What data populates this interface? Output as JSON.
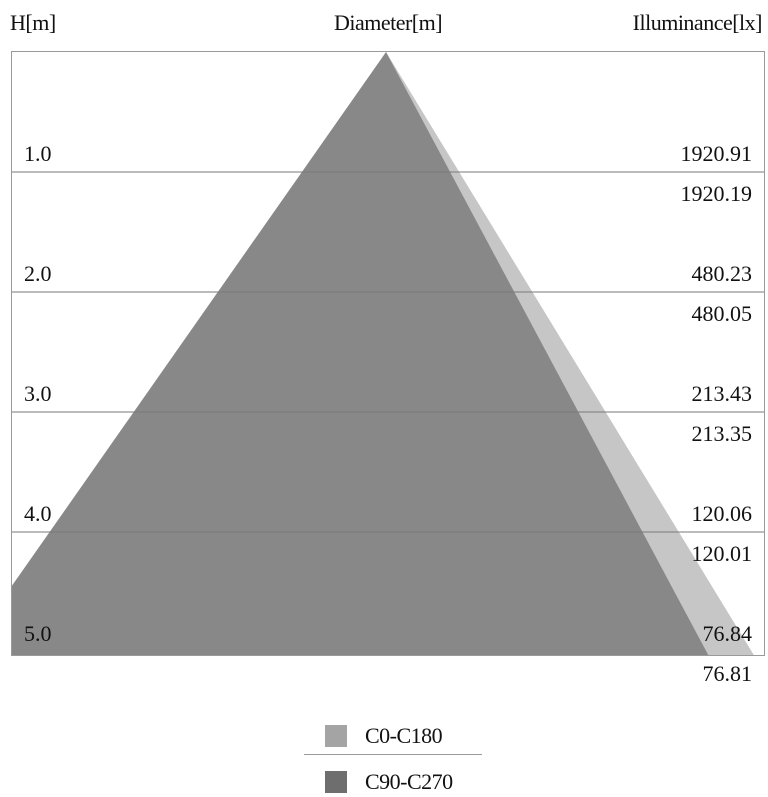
{
  "headers": {
    "height": "H[m]",
    "diameter": "Diameter[m]",
    "illuminance": "Illuminance[lx]"
  },
  "chart_data": {
    "type": "area",
    "xlabel": "Diameter[m]",
    "ylabel": "H[m]",
    "y2label": "Illuminance[lx]",
    "heights": [
      1.0,
      2.0,
      3.0,
      4.0,
      5.0
    ],
    "height_labels": [
      "1.0",
      "2.0",
      "3.0",
      "4.0",
      "5.0"
    ],
    "series": [
      {
        "name": "C0-C180",
        "color": "#c8c8c8",
        "illuminance": [
          1920.91,
          480.23,
          213.43,
          120.06,
          76.84
        ],
        "illuminance_labels": [
          "1920.91",
          "480.23",
          "213.43",
          "120.06",
          "76.84"
        ],
        "left_edge_at_height": [
          0.125,
          2.0,
          3.875,
          5.75,
          7.625
        ],
        "right_edge_at_height": [
          0.125,
          2.0,
          3.875,
          5.75,
          7.625
        ]
      },
      {
        "name": "C90-C270",
        "color": "#6e6e6e",
        "illuminance": [
          1920.19,
          480.05,
          213.35,
          120.01,
          76.81
        ],
        "illuminance_labels": [
          "1920.19",
          "480.05",
          "213.35",
          "120.01",
          "76.81"
        ],
        "left_edge_at_height": [
          0.125,
          2.28,
          4.44,
          6.6,
          8.76
        ],
        "right_edge_at_height": [
          0.125,
          1.76,
          3.4,
          5.04,
          6.68
        ]
      }
    ],
    "ylim": [
      0,
      5.0
    ],
    "grid": true
  },
  "legend": {
    "items": [
      {
        "label": "C0-C180",
        "color": "#a4a4a4"
      },
      {
        "label": "C90-C270",
        "color": "#6e6e6e"
      }
    ]
  }
}
